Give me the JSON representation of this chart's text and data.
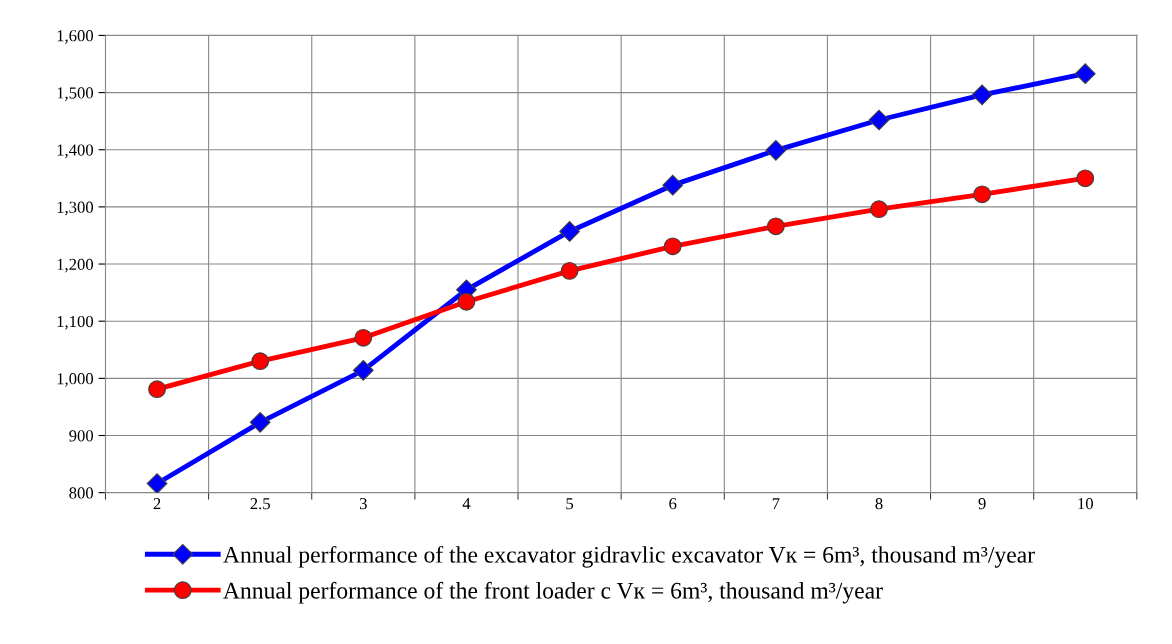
{
  "chart_data": {
    "type": "line",
    "categories": [
      "2",
      "2.5",
      "3",
      "4",
      "5",
      "6",
      "7",
      "8",
      "9",
      "10"
    ],
    "series": [
      {
        "name": "Annual performance of the excavator gidravlic excavator Vк = 6m³, thousand m³/year",
        "color": "#0000ff",
        "marker": "diamond",
        "values": [
          816,
          923,
          1014,
          1155,
          1257,
          1338,
          1399,
          1452,
          1496,
          1533
        ]
      },
      {
        "name": "Annual performance of the front loader с Vк = 6m³, thousand m³/year",
        "color": "#ff0000",
        "marker": "circle",
        "values": [
          981,
          1030,
          1071,
          1134,
          1188,
          1231,
          1266,
          1296,
          1322,
          1350
        ]
      }
    ],
    "ylim": [
      800,
      1600
    ],
    "yticks": [
      {
        "value": 800,
        "label": "800"
      },
      {
        "value": 900,
        "label": "900"
      },
      {
        "value": 1000,
        "label": "1,000"
      },
      {
        "value": 1100,
        "label": "1,100"
      },
      {
        "value": 1200,
        "label": "1,200"
      },
      {
        "value": 1300,
        "label": "1,300"
      },
      {
        "value": 1400,
        "label": "1,400"
      },
      {
        "value": 1500,
        "label": "1,500"
      },
      {
        "value": 1600,
        "label": "1,600"
      }
    ],
    "grid": true,
    "legend": "bottom",
    "line_style": "solid"
  }
}
